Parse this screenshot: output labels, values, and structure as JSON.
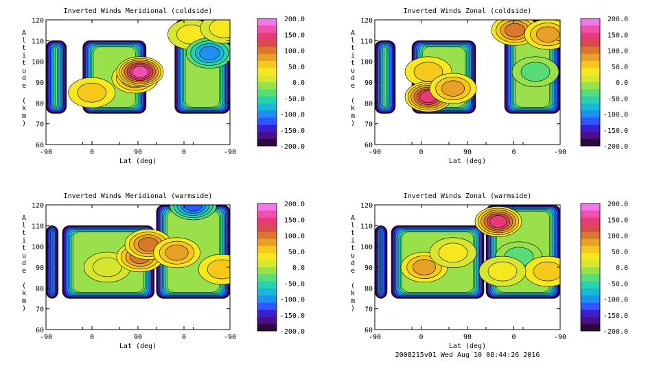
{
  "footer": "2008215v01 Wed Aug 10 08:44:26 2016",
  "colorbar": {
    "ticks": [
      "200.0",
      "150.0",
      "100.0",
      "50.0",
      "0.0",
      "-50.0",
      "-100.0",
      "-150.0",
      "-200.0"
    ],
    "colors": [
      "#2a0a3a",
      "#4b0f8a",
      "#3a1fd0",
      "#2f57ff",
      "#1f8ff0",
      "#17b8d8",
      "#2ad0b0",
      "#58dc78",
      "#9ae04a",
      "#d8e630",
      "#f6e81e",
      "#f6c81a",
      "#e8a028",
      "#d8782a",
      "#d84a50",
      "#e83a78",
      "#f050b0",
      "#f078e8"
    ]
  },
  "chart_data": [
    {
      "type": "contour",
      "title": "Inverted Winds Meridional (coldside)",
      "xlabel": "Lat (deg)",
      "ylabel": "Altitude (km)",
      "xticks": [
        "-90",
        "0",
        "90",
        "0",
        "-90"
      ],
      "yticks": [
        "60",
        "70",
        "80",
        "90",
        "100",
        "110",
        "120"
      ],
      "ylim": [
        60,
        120
      ],
      "colorbar_range": [
        -200,
        200
      ],
      "regions": [
        {
          "x": [
            -90,
            -40
          ],
          "y": [
            75,
            110
          ]
        },
        {
          "x": [
            0,
            155
          ],
          "y": [
            75,
            110
          ]
        },
        {
          "x": [
            225,
            360
          ],
          "y": [
            75,
            120
          ]
        }
      ],
      "features": [
        {
          "lat": 22,
          "alt": 85,
          "value": 60
        },
        {
          "lat": 128,
          "alt": 92,
          "value": 90
        },
        {
          "lat": 140,
          "alt": 95,
          "value": 170
        },
        {
          "lat": 265,
          "alt": 113,
          "value": 40
        },
        {
          "lat": 310,
          "alt": 104,
          "value": -90
        },
        {
          "lat": 345,
          "alt": 116,
          "value": 30
        }
      ]
    },
    {
      "type": "contour",
      "title": "Inverted Winds Zonal (coldside)",
      "xlabel": "Lat (deg)",
      "ylabel": "Altitude (km)",
      "xticks": [
        "-90",
        "0",
        "90",
        "0",
        "-90"
      ],
      "yticks": [
        "60",
        "70",
        "80",
        "90",
        "100",
        "110",
        "120"
      ],
      "ylim": [
        60,
        120
      ],
      "colorbar_range": [
        -200,
        200
      ],
      "regions": [
        {
          "x": [
            -90,
            -40
          ],
          "y": [
            75,
            110
          ]
        },
        {
          "x": [
            0,
            155
          ],
          "y": [
            75,
            110
          ]
        },
        {
          "x": [
            225,
            360
          ],
          "y": [
            75,
            120
          ]
        }
      ],
      "features": [
        {
          "lat": 40,
          "alt": 95,
          "value": 60
        },
        {
          "lat": 40,
          "alt": 83,
          "value": 150
        },
        {
          "lat": 100,
          "alt": 87,
          "value": 80
        },
        {
          "lat": 250,
          "alt": 115,
          "value": 90
        },
        {
          "lat": 300,
          "alt": 95,
          "value": -40
        },
        {
          "lat": 330,
          "alt": 113,
          "value": 70
        }
      ]
    },
    {
      "type": "contour",
      "title": "Inverted Winds Meridional (warmside)",
      "xlabel": "Lat (deg)",
      "ylabel": "Altitude (km)",
      "xticks": [
        "-90",
        "0",
        "90",
        "0",
        "-90"
      ],
      "yticks": [
        "60",
        "70",
        "80",
        "90",
        "100",
        "110",
        "120"
      ],
      "ylim": [
        60,
        120
      ],
      "colorbar_range": [
        -200,
        200
      ],
      "regions": [
        {
          "x": [
            -90,
            -60
          ],
          "y": [
            75,
            110
          ]
        },
        {
          "x": [
            -50,
            175
          ],
          "y": [
            75,
            110
          ]
        },
        {
          "x": [
            180,
            360
          ],
          "y": [
            75,
            120
          ]
        }
      ],
      "features": [
        {
          "lat": 60,
          "alt": 90,
          "value": 20
        },
        {
          "lat": 140,
          "alt": 95,
          "value": 100
        },
        {
          "lat": 160,
          "alt": 101,
          "value": 110
        },
        {
          "lat": 230,
          "alt": 97,
          "value": 70
        },
        {
          "lat": 340,
          "alt": 89,
          "value": 50
        },
        {
          "lat": 270,
          "alt": 120,
          "value": -130
        }
      ]
    },
    {
      "type": "contour",
      "title": "Inverted Winds Zonal (warmside)",
      "xlabel": "Lat (deg)",
      "ylabel": "Altitude (km)",
      "xticks": [
        "-90",
        "0",
        "90",
        "0",
        "-90"
      ],
      "yticks": [
        "60",
        "70",
        "80",
        "90",
        "100",
        "110",
        "120"
      ],
      "ylim": [
        60,
        120
      ],
      "colorbar_range": [
        -200,
        200
      ],
      "regions": [
        {
          "x": [
            -90,
            -60
          ],
          "y": [
            75,
            110
          ]
        },
        {
          "x": [
            -50,
            175
          ],
          "y": [
            75,
            110
          ]
        },
        {
          "x": [
            180,
            360
          ],
          "y": [
            75,
            120
          ]
        }
      ],
      "features": [
        {
          "lat": 30,
          "alt": 90,
          "value": 70
        },
        {
          "lat": 100,
          "alt": 97,
          "value": 30
        },
        {
          "lat": 210,
          "alt": 112,
          "value": 150
        },
        {
          "lat": 260,
          "alt": 95,
          "value": -40
        },
        {
          "lat": 330,
          "alt": 88,
          "value": 60
        },
        {
          "lat": 220,
          "alt": 88,
          "value": 40
        }
      ]
    }
  ]
}
